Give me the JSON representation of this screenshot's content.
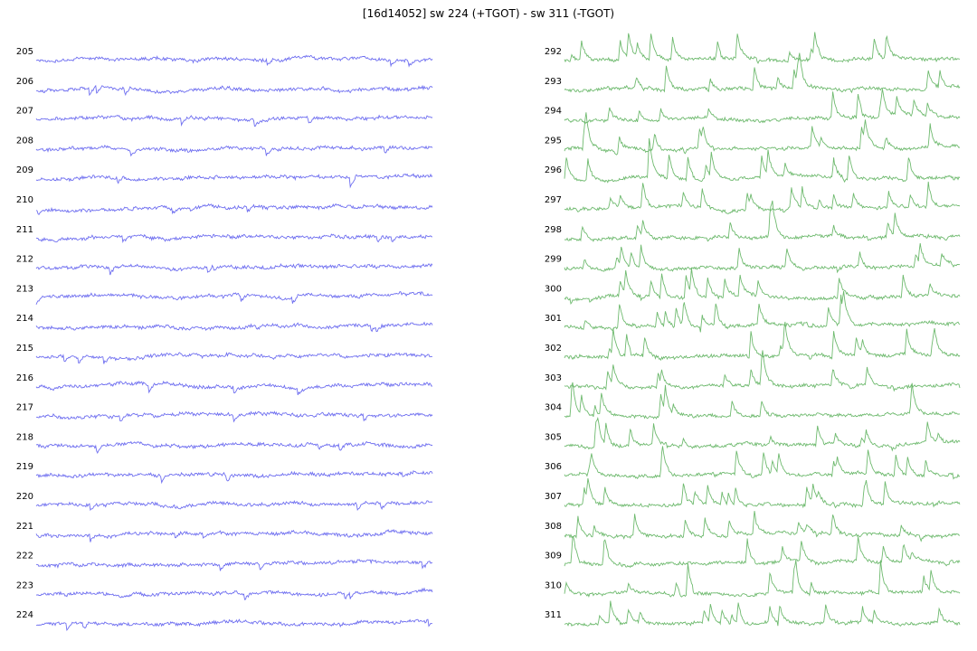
{
  "title": "[16d14052] sw 224 (+TGOT) - sw 311 (-TGOT)",
  "colors": {
    "left": "#6f6ff0",
    "right": "#6fba6f"
  },
  "chart_data": {
    "type": "line",
    "title": "[16d14052] sw 224 (+TGOT) - sw 311 (-TGOT)",
    "grid": false,
    "axes_visible": false,
    "panels": [
      {
        "name": "+TGOT",
        "color": "#6f6ff0",
        "style": "continuous noise, no large events",
        "sweeps": [
          205,
          206,
          207,
          208,
          209,
          210,
          211,
          212,
          213,
          214,
          215,
          216,
          217,
          218,
          219,
          220,
          221,
          222,
          223,
          224
        ]
      },
      {
        "name": "-TGOT",
        "color": "#6fba6f",
        "style": "noise with frequent upward spontaneous events",
        "sweeps": [
          292,
          293,
          294,
          295,
          296,
          297,
          298,
          299,
          300,
          301,
          302,
          303,
          304,
          305,
          306,
          307,
          308,
          309,
          310,
          311
        ]
      }
    ]
  }
}
